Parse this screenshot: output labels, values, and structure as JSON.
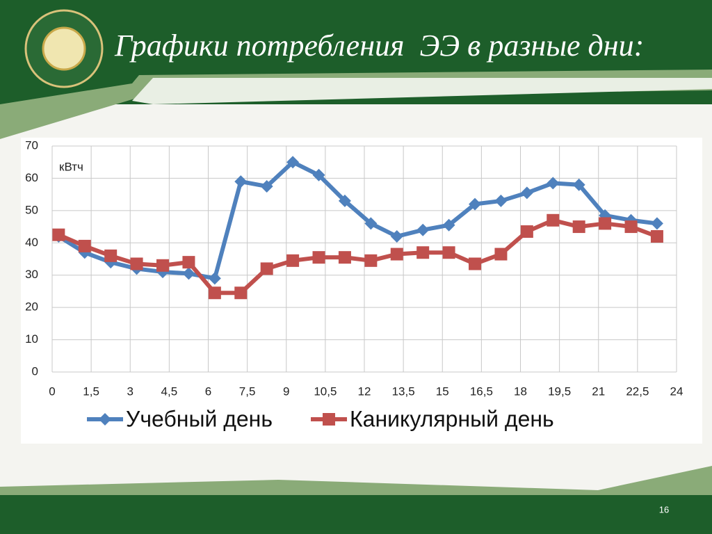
{
  "chart_data": {
    "type": "line",
    "title": "Графики потребления  ЭЭ в разные дни:",
    "y_label": "кВтч",
    "x": [
      0.25,
      1.25,
      2.25,
      3.25,
      4.25,
      5.25,
      6.25,
      7.25,
      8.25,
      9.25,
      10.25,
      11.25,
      12.25,
      13.25,
      14.25,
      15.25,
      16.25,
      17.25,
      18.25,
      19.25,
      20.25,
      21.25,
      22.25,
      23.25
    ],
    "series": [
      {
        "name": "Учебный день",
        "color": "#4f81bd",
        "marker": "diamond",
        "values": [
          42,
          37,
          34,
          32,
          31,
          30.5,
          29,
          59,
          57.5,
          65,
          61,
          53,
          46,
          42,
          44,
          45.5,
          52,
          53,
          55.5,
          58.5,
          58,
          48.5,
          47,
          46
        ]
      },
      {
        "name": "Каникулярный день",
        "color": "#c0504d",
        "marker": "square",
        "values": [
          42.5,
          39,
          36,
          33.5,
          33,
          34,
          24.5,
          24.5,
          32,
          34.5,
          35.5,
          35.5,
          34.5,
          36.5,
          37,
          37,
          33.5,
          36.5,
          43.5,
          47,
          45,
          46,
          45,
          42
        ]
      }
    ],
    "xlim": [
      0,
      24
    ],
    "xticks": [
      0,
      {
        "value": 1.5,
        "label": "1,5"
      },
      3,
      {
        "value": 4.5,
        "label": "4,5"
      },
      6,
      {
        "value": 7.5,
        "label": "7,5"
      },
      9,
      {
        "value": 10.5,
        "label": "10,5"
      },
      12,
      {
        "value": 13.5,
        "label": "13,5"
      },
      15,
      {
        "value": 16.5,
        "label": "16,5"
      },
      18,
      {
        "value": 19.5,
        "label": "19,5"
      },
      21,
      {
        "value": 22.5,
        "label": "22,5"
      },
      24
    ],
    "ylim": [
      0,
      70
    ],
    "yticks": [
      0,
      10,
      20,
      30,
      40,
      50,
      60,
      70
    ],
    "grid": true,
    "legend": "bottom"
  },
  "page_number": "16"
}
